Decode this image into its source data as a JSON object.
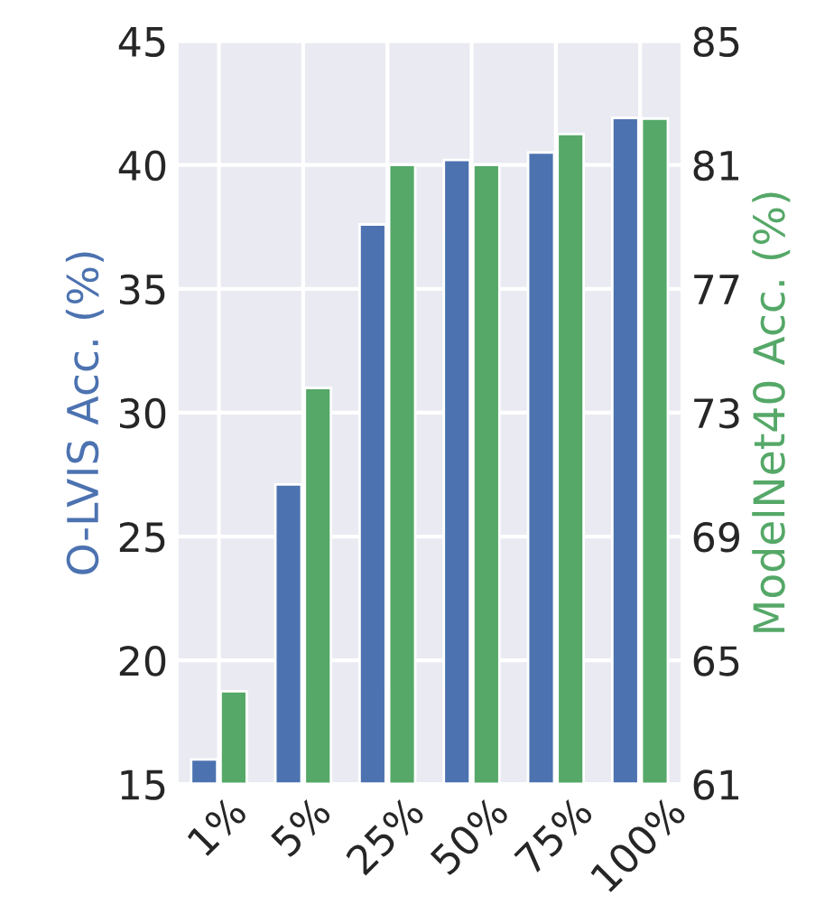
{
  "chart_data": {
    "type": "bar",
    "categories": [
      "1%",
      "5%",
      "25%",
      "50%",
      "75%",
      "100%"
    ],
    "series": [
      {
        "color": "#4c72b0",
        "values": [
          16.0,
          27.1,
          37.6,
          40.2,
          40.5,
          41.9
        ]
      },
      {
        "color": "#55a868",
        "axis": "y2",
        "values": [
          64.0,
          73.8,
          81.0,
          81.0,
          82.0,
          82.5
        ]
      }
    ],
    "ylabel": "O-LVIS Acc. (%)",
    "y2label": "ModelNet40 Acc. (%)",
    "ylim": [
      15,
      45
    ],
    "yticks": [
      15,
      20,
      25,
      30,
      35,
      40,
      45
    ],
    "y2lim": [
      61,
      85
    ],
    "y2ticks": [
      61,
      65,
      69,
      73,
      77,
      81,
      85
    ],
    "grid": true
  }
}
